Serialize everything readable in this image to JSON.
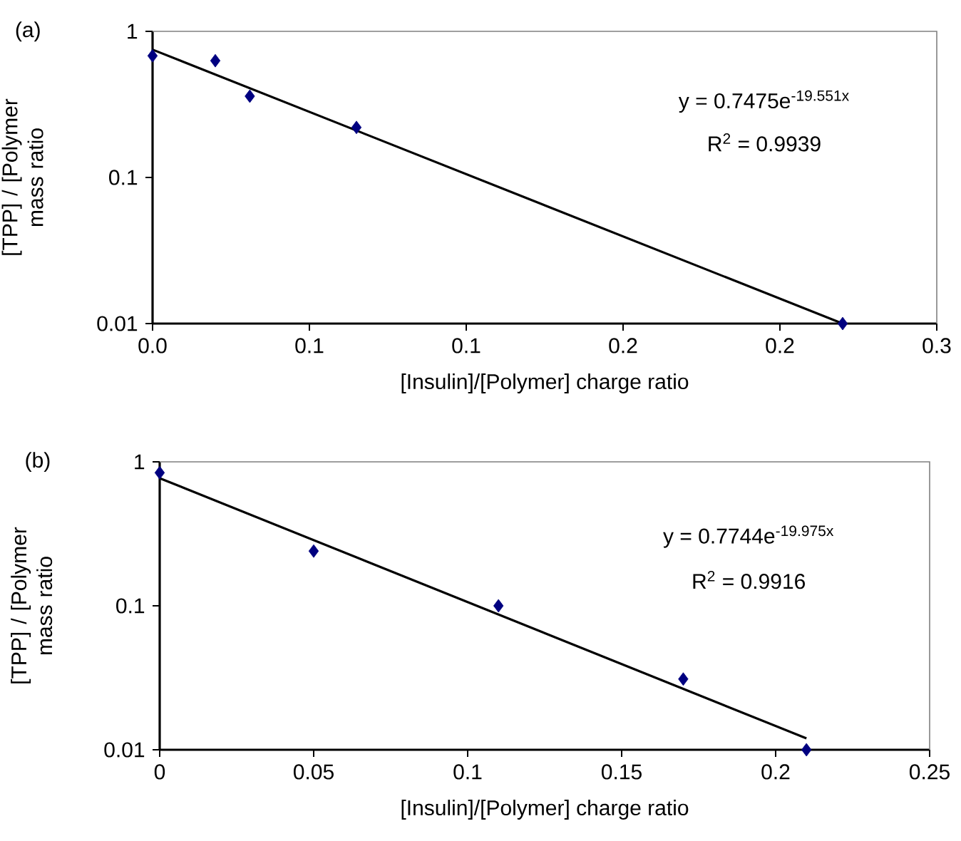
{
  "chart_data": [
    {
      "type": "scatter",
      "title": "(a)",
      "xlabel": "[Insulin]/[Polymer] charge ratio",
      "ylabel": "[TPP] / [Polymer mass ratio",
      "log": "y",
      "marker": "diamond",
      "xlim": [
        0,
        0.25
      ],
      "ylim": [
        0.01,
        1
      ],
      "xticks": [
        {
          "value": 0,
          "label": "0.0"
        },
        {
          "value": 0.05,
          "label": "0.1"
        },
        {
          "value": 0.1,
          "label": "0.1"
        },
        {
          "value": 0.15,
          "label": "0.2"
        },
        {
          "value": 0.2,
          "label": "0.2"
        },
        {
          "value": 0.25,
          "label": "0.3"
        }
      ],
      "yticks": [
        0.01,
        0.1,
        1
      ],
      "series": [
        {
          "color": "#000080",
          "x": [
            0,
            0.02,
            0.031,
            0.065,
            0.22
          ],
          "values": [
            0.68,
            0.63,
            0.36,
            0.22,
            0.01
          ]
        },
        {
          "type": "line",
          "color": "#000000",
          "line_style": "solid",
          "marker": "none",
          "x": [
            0,
            0.22
          ],
          "values": [
            0.75,
            0.01
          ]
        }
      ],
      "annotations": [
        "y = 0.7475e$^{-19.551x}$",
        "R$^{2}$ = 0.9939"
      ]
    },
    {
      "type": "scatter",
      "title": "(b)",
      "xlabel": "[Insulin]/[Polymer] charge ratio",
      "ylabel": "[TPP] / [Polymer mass ratio",
      "log": "y",
      "marker": "diamond",
      "xlim": [
        0,
        0.25
      ],
      "ylim": [
        0.01,
        1
      ],
      "xticks": [
        0,
        0.05,
        0.1,
        0.15,
        0.2,
        0.25
      ],
      "yticks": [
        0.01,
        0.1,
        1
      ],
      "series": [
        {
          "color": "#000080",
          "x": [
            0,
            0.05,
            0.11,
            0.17,
            0.21
          ],
          "values": [
            0.84,
            0.24,
            0.1,
            0.031,
            0.01
          ]
        },
        {
          "type": "line",
          "color": "#000000",
          "line_style": "solid",
          "marker": "none",
          "x": [
            0,
            0.21
          ],
          "values": [
            0.77,
            0.012
          ]
        }
      ],
      "annotations": [
        "y = 0.7744e$^{-19.975x}$",
        "R$^{2}$ = 0.9916"
      ]
    }
  ]
}
